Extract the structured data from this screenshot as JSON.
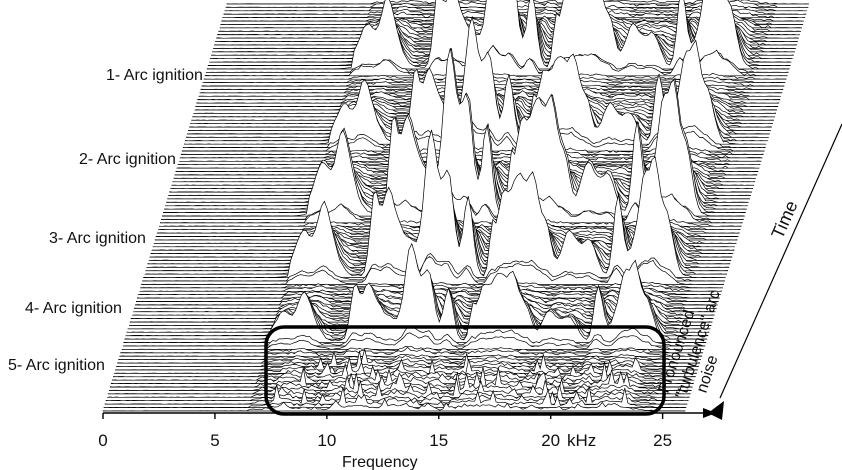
{
  "chart_data": {
    "type": "waterfall",
    "title": "",
    "xlabel": "Frequency",
    "x_unit": "kHz",
    "ylabel": "Time",
    "x_ticks": [
      0,
      5,
      10,
      15,
      20,
      25
    ],
    "xlim": [
      0,
      26
    ],
    "grid": false,
    "event_labels": [
      "1- Arc ignition",
      "2- Arc ignition",
      "3- Arc ignition",
      "4- Arc ignition",
      "5- Arc ignition"
    ],
    "annotation": "Pronounced \"turbulence\" arc noise",
    "annotation_lines": [
      "Pronounced",
      "\"turbulence\" arc",
      "noise"
    ],
    "highlight_region_khz": [
      7,
      24
    ]
  }
}
